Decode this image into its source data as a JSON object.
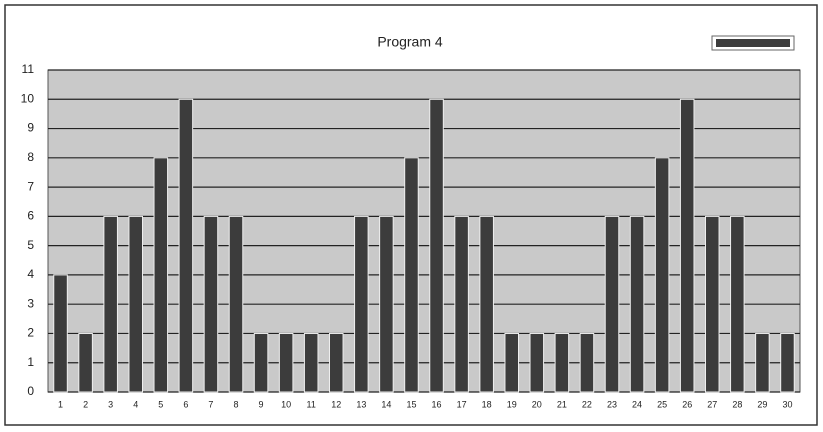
{
  "chart_data": {
    "type": "bar",
    "title": "Program 4",
    "categories": [
      "1",
      "2",
      "3",
      "4",
      "5",
      "6",
      "7",
      "8",
      "9",
      "10",
      "11",
      "12",
      "13",
      "14",
      "15",
      "16",
      "17",
      "18",
      "19",
      "20",
      "21",
      "22",
      "23",
      "24",
      "25",
      "26",
      "27",
      "28",
      "29",
      "30"
    ],
    "values": [
      4,
      2,
      6,
      6,
      8,
      10,
      6,
      6,
      2,
      2,
      2,
      2,
      6,
      6,
      8,
      10,
      6,
      6,
      2,
      2,
      2,
      2,
      6,
      6,
      8,
      10,
      6,
      6,
      2,
      2
    ],
    "color": "#3c3c3c",
    "ylim": [
      0,
      11
    ],
    "yticks": [
      0,
      1,
      2,
      3,
      4,
      5,
      6,
      7,
      8,
      9,
      10,
      11
    ],
    "grid": true
  }
}
